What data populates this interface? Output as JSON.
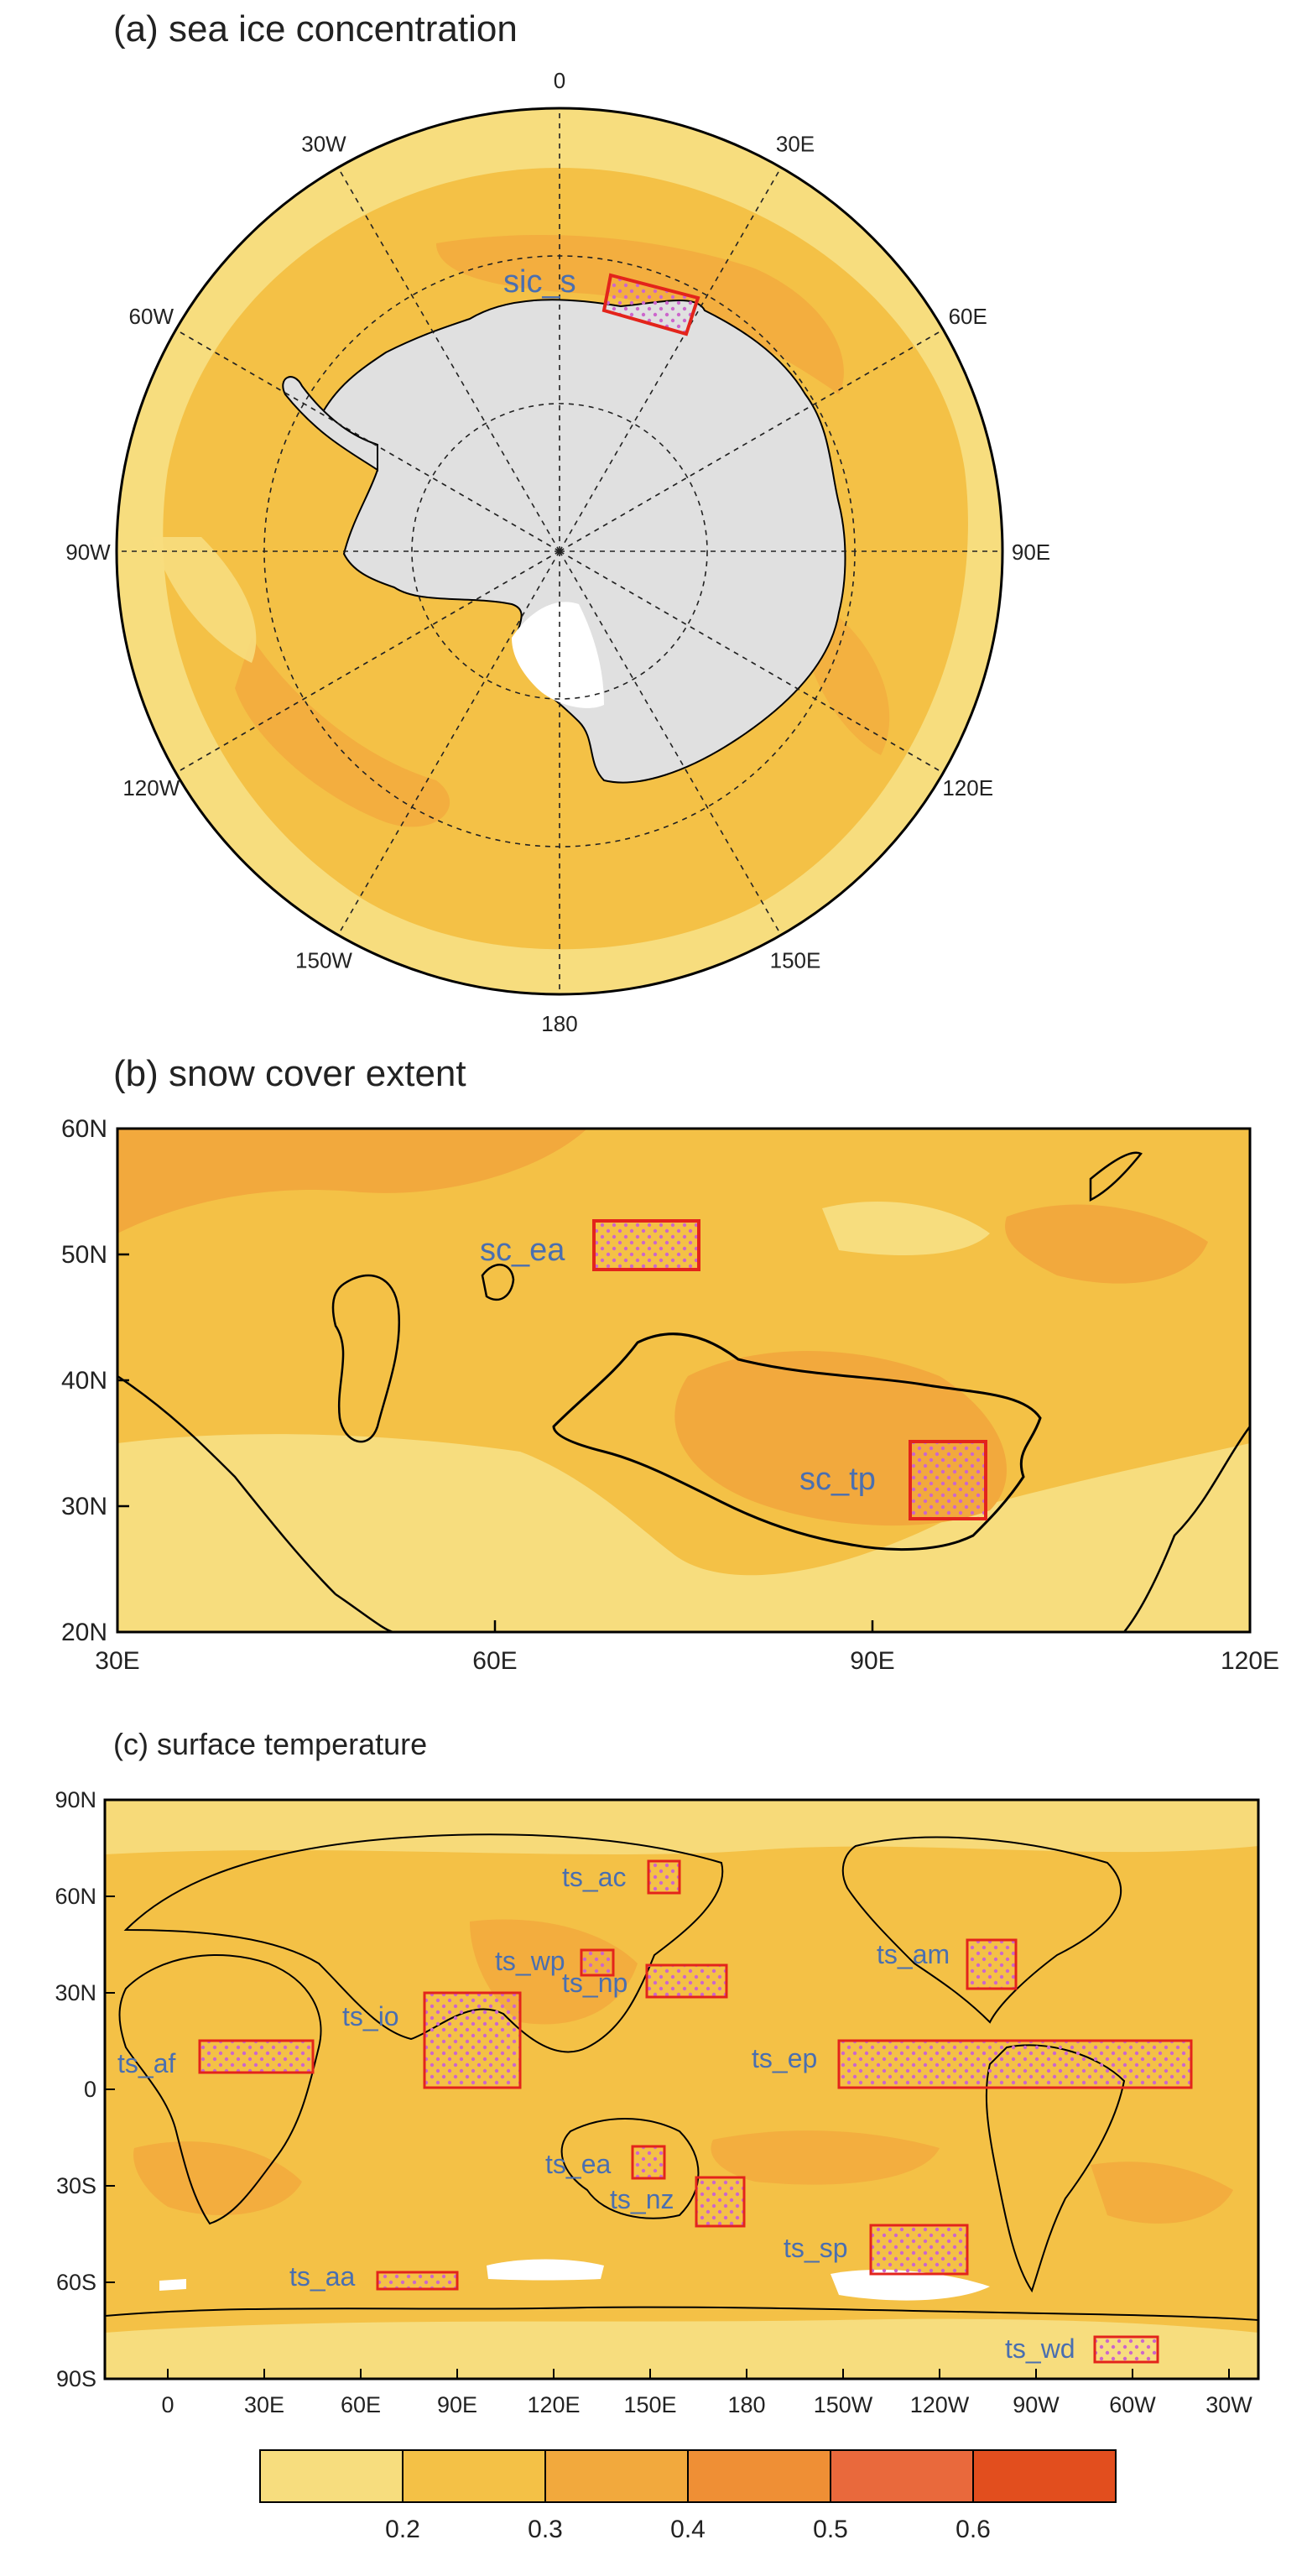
{
  "panel_a": {
    "title": "(a) sea ice concentration",
    "meridian_labels": [
      "0",
      "30E",
      "60E",
      "90E",
      "120E",
      "150E",
      "180",
      "150W",
      "120W",
      "90W",
      "60W",
      "30W"
    ],
    "region_label": "sic_s"
  },
  "panel_b": {
    "title": "(b) snow cover extent",
    "y_ticks": [
      "60N",
      "50N",
      "40N",
      "30N",
      "20N"
    ],
    "x_ticks": [
      "30E",
      "60E",
      "90E",
      "120E"
    ],
    "region_labels": [
      "sc_ea",
      "sc_tp"
    ]
  },
  "panel_c": {
    "title": "(c) surface temperature",
    "y_ticks": [
      "90N",
      "60N",
      "30N",
      "0",
      "30S",
      "60S",
      "90S"
    ],
    "x_ticks": [
      "0",
      "30E",
      "60E",
      "90E",
      "120E",
      "150E",
      "180",
      "150W",
      "120W",
      "90W",
      "60W",
      "30W"
    ],
    "region_labels": [
      "ts_ac",
      "ts_wp",
      "ts_np",
      "ts_am",
      "ts_io",
      "ts_ep",
      "ts_af",
      "ts_ea",
      "ts_nz",
      "ts_sp",
      "ts_aa",
      "ts_wd"
    ]
  },
  "colorbar": {
    "labels": [
      "0.2",
      "0.3",
      "0.4",
      "0.5",
      "0.6"
    ],
    "colors": [
      "#f7dd7e",
      "#f4c146",
      "#f2a93d",
      "#ef8f35",
      "#e9693c",
      "#e24e1e"
    ]
  },
  "colors": {
    "ocean_light": "#f7dd7e",
    "field_mid": "#f4c146",
    "field_dark": "#f2a93d",
    "land_gray": "#e0e0e0",
    "box_red": "#e3241b",
    "stipple": "#cc66cc",
    "region_label_blue": "#4a6fb0"
  }
}
